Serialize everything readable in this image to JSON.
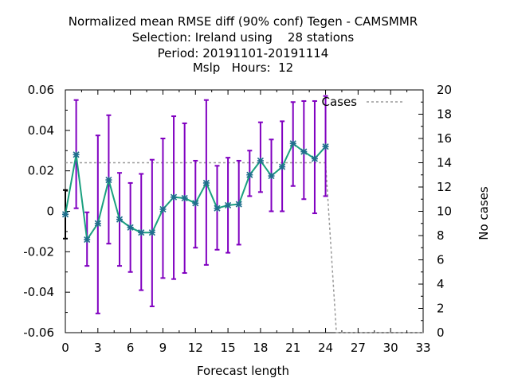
{
  "chart_data": {
    "type": "line",
    "title_lines": [
      "Normalized mean RMSE diff (90% conf) Tegen - CAMSMMR",
      "Selection: Ireland using    28 stations",
      "Period: 20191101-20191114",
      "Mslp   Hours:  12"
    ],
    "xlabel": "Forecast length",
    "ylabel_right": "No cases",
    "xlim": [
      0,
      33
    ],
    "ylim": [
      -0.06,
      0.06
    ],
    "y2lim": [
      0,
      20
    ],
    "x_ticks": [
      "0",
      "3",
      "6",
      "9",
      "12",
      "15",
      "18",
      "21",
      "24",
      "27",
      "30",
      "33"
    ],
    "y_ticks": [
      "0.06",
      "0.04",
      "0.02",
      "0",
      "-0.02",
      "-0.04",
      "-0.06"
    ],
    "y2_ticks": [
      "20",
      "18",
      "16",
      "14",
      "12",
      "10",
      "8",
      "6",
      "4",
      "2",
      "0"
    ],
    "legend_position": "top-right",
    "colors": {
      "mean_line": "#1aa07f",
      "marker": "#1f6e8c",
      "errorbar": "#8000c0",
      "cases_line": "#999999",
      "errorbar_first": "#000000"
    },
    "mean_rmse_diff": {
      "x": [
        0,
        1,
        2,
        3,
        4,
        5,
        6,
        7,
        8,
        9,
        10,
        11,
        12,
        13,
        14,
        15,
        16,
        17,
        18,
        19,
        20,
        21,
        22,
        23,
        24
      ],
      "values": [
        -0.0015,
        0.028,
        -0.014,
        -0.006,
        0.0155,
        -0.004,
        -0.008,
        -0.0105,
        -0.0105,
        0.001,
        0.007,
        0.0065,
        0.004,
        0.014,
        0.0015,
        0.003,
        0.0035,
        0.018,
        0.025,
        0.0175,
        0.022,
        0.0335,
        0.0295,
        0.026,
        0.032
      ],
      "ci_low": [
        -0.0135,
        0.0015,
        -0.027,
        -0.0505,
        -0.016,
        -0.027,
        -0.03,
        -0.039,
        -0.047,
        -0.033,
        -0.0335,
        -0.0305,
        -0.018,
        -0.0265,
        -0.019,
        -0.0205,
        -0.0165,
        0.0075,
        0.0095,
        0.0,
        0.0,
        0.0125,
        0.006,
        -0.001,
        0.0075
      ],
      "ci_high": [
        0.0105,
        0.055,
        -0.0005,
        0.0375,
        0.0475,
        0.019,
        0.014,
        0.0185,
        0.0255,
        0.036,
        0.047,
        0.0435,
        0.025,
        0.055,
        0.0225,
        0.0265,
        0.025,
        0.03,
        0.044,
        0.0355,
        0.0445,
        0.054,
        0.0545,
        0.0545,
        0.057
      ]
    },
    "series": [
      {
        "name": "Cases",
        "x": [
          0,
          24,
          25,
          33
        ],
        "values": [
          14,
          14,
          0,
          0
        ]
      }
    ]
  }
}
